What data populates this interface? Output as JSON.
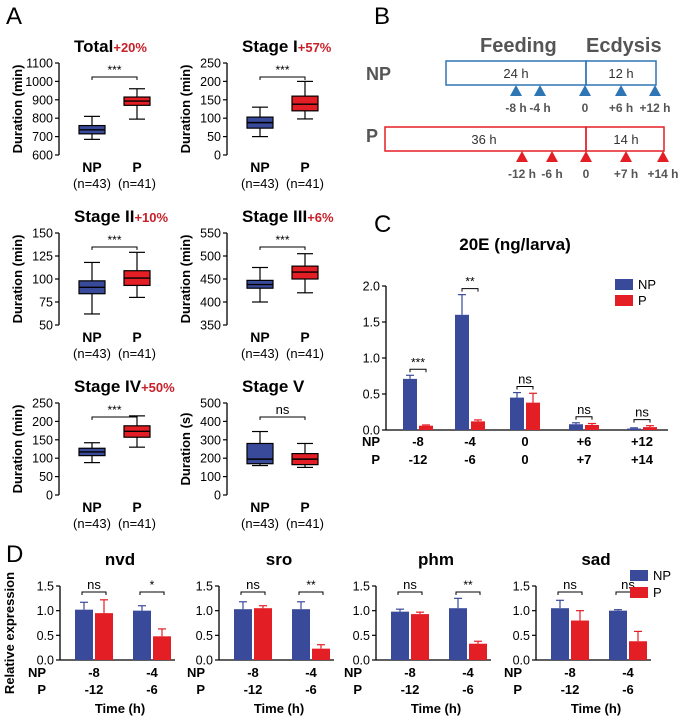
{
  "colors": {
    "np": "#3a4a9a",
    "p": "#e31e24",
    "red_text": "#c8202a",
    "np_line": "#2e75b6",
    "p_line": "#e31e24",
    "blue_tri": "#2e75b6",
    "red_tri": "#e31e24"
  },
  "panel_labels": {
    "a": "A",
    "b": "B",
    "c": "C",
    "d": "D"
  },
  "box_common": {
    "cat_np": "NP",
    "cat_p": "P",
    "n_np": "(n=43)",
    "n_p": "(n=41)"
  },
  "box_plots": [
    {
      "title": "Total",
      "pct": "+20%",
      "ylabel": "Duration (min)",
      "ymin": 600,
      "ymax": 1100,
      "ticks": [
        600,
        700,
        800,
        900,
        1000,
        1100
      ],
      "sig": "***",
      "np": {
        "min": 685,
        "q1": 715,
        "med": 737,
        "q3": 760,
        "max": 810
      },
      "p": {
        "min": 795,
        "q1": 870,
        "med": 893,
        "q3": 915,
        "max": 960
      }
    },
    {
      "title": "Stage I",
      "pct": "+57%",
      "ylabel": "Duration (min)",
      "ymin": 0,
      "ymax": 250,
      "ticks": [
        0,
        50,
        100,
        150,
        200,
        250
      ],
      "sig": "***",
      "np": {
        "min": 50,
        "q1": 73,
        "med": 88,
        "q3": 103,
        "max": 130
      },
      "p": {
        "min": 98,
        "q1": 120,
        "med": 138,
        "q3": 160,
        "max": 200
      }
    },
    {
      "title": "Stage II",
      "pct": "+10%",
      "ylabel": "Duration (min)",
      "ymin": 50,
      "ymax": 150,
      "ticks": [
        50,
        75,
        100,
        125,
        150
      ],
      "sig": "***",
      "np": {
        "min": 62,
        "q1": 84,
        "med": 91,
        "q3": 98,
        "max": 118
      },
      "p": {
        "min": 80,
        "q1": 93,
        "med": 101,
        "q3": 109,
        "max": 129
      }
    },
    {
      "title": "Stage III",
      "pct": "+6%",
      "ylabel": "Duration (min)",
      "ymin": 350,
      "ymax": 550,
      "ticks": [
        350,
        400,
        450,
        500,
        550
      ],
      "sig": "***",
      "np": {
        "min": 400,
        "q1": 430,
        "med": 438,
        "q3": 447,
        "max": 475
      },
      "p": {
        "min": 420,
        "q1": 450,
        "med": 465,
        "q3": 478,
        "max": 505
      }
    },
    {
      "title": "Stage IV",
      "pct": "+50%",
      "ylabel": "Duration (min)",
      "ymin": 0,
      "ymax": 250,
      "ticks": [
        0,
        50,
        100,
        150,
        200,
        250
      ],
      "sig": "***",
      "np": {
        "min": 88,
        "q1": 107,
        "med": 117,
        "q3": 127,
        "max": 142
      },
      "p": {
        "min": 130,
        "q1": 157,
        "med": 173,
        "q3": 188,
        "max": 215
      }
    },
    {
      "title": "Stage V",
      "pct": "",
      "ylabel": "Duration (s)",
      "ymin": 0,
      "ymax": 500,
      "ticks": [
        0,
        100,
        200,
        300,
        400,
        500
      ],
      "sig": "ns",
      "np": {
        "min": 160,
        "q1": 170,
        "med": 195,
        "q3": 280,
        "max": 345
      },
      "p": {
        "min": 150,
        "q1": 165,
        "med": 195,
        "q3": 225,
        "max": 280
      }
    }
  ],
  "timeline": {
    "feeding": "Feeding",
    "ecdysis": "Ecdysis",
    "np_label": "NP",
    "p_label": "P",
    "np_seg1": "24 h",
    "np_seg2": "12 h",
    "p_seg1": "36 h",
    "p_seg2": "14 h",
    "np_ticks": [
      "-8 h",
      "-4 h",
      "0",
      "+6 h",
      "+12 h"
    ],
    "p_ticks": [
      "-12 h",
      "-6 h",
      "0",
      "+7 h",
      "+14 h"
    ]
  },
  "chart_data": [
    {
      "type": "bar",
      "title": "20E (ng/larva)",
      "legend": [
        "NP",
        "P"
      ],
      "legend_placement": "top-right",
      "row_np": "NP",
      "row_p": "P",
      "cat_np": [
        "-8",
        "-4",
        "0",
        "+6",
        "+12"
      ],
      "cat_p": [
        "-12",
        "-6",
        "0",
        "+7",
        "+14"
      ],
      "ylim": [
        0,
        2.0
      ],
      "ticks": [
        0.0,
        0.5,
        1.0,
        1.5,
        2.0
      ],
      "series": [
        {
          "name": "NP",
          "values": [
            0.71,
            1.6,
            0.45,
            0.08,
            0.02
          ],
          "err": [
            0.05,
            0.28,
            0.07,
            0.02,
            0.01
          ]
        },
        {
          "name": "P",
          "values": [
            0.06,
            0.12,
            0.38,
            0.07,
            0.04
          ],
          "err": [
            0.01,
            0.02,
            0.13,
            0.02,
            0.02
          ]
        }
      ],
      "sig": [
        "***",
        "**",
        "ns",
        "ns",
        "ns"
      ]
    },
    {
      "type": "bar",
      "ylabel": "Relative expression",
      "xlabel": "Time (h)",
      "legend": [
        "NP",
        "P"
      ],
      "legend_placement": "right",
      "row_np": "NP",
      "row_p": "P",
      "cat_np": [
        "-8",
        "-4"
      ],
      "cat_p": [
        "-12",
        "-6"
      ],
      "ylim": [
        0,
        1.5
      ],
      "ticks": [
        0.0,
        0.5,
        1.0,
        1.5
      ],
      "panels": [
        {
          "title": "nvd",
          "np": [
            1.02,
            1.0
          ],
          "np_err": [
            0.15,
            0.1
          ],
          "p": [
            0.95,
            0.48
          ],
          "p_err": [
            0.27,
            0.15
          ],
          "sig": [
            "ns",
            "*"
          ]
        },
        {
          "title": "sro",
          "np": [
            1.03,
            1.03
          ],
          "np_err": [
            0.15,
            0.15
          ],
          "p": [
            1.05,
            0.23
          ],
          "p_err": [
            0.05,
            0.08
          ],
          "sig": [
            "ns",
            "**"
          ]
        },
        {
          "title": "phm",
          "np": [
            0.98,
            1.05
          ],
          "np_err": [
            0.05,
            0.2
          ],
          "p": [
            0.93,
            0.33
          ],
          "p_err": [
            0.04,
            0.05
          ],
          "sig": [
            "ns",
            "**"
          ]
        },
        {
          "title": "sad",
          "np": [
            1.05,
            1.0
          ],
          "np_err": [
            0.16,
            0.02
          ],
          "p": [
            0.8,
            0.38
          ],
          "p_err": [
            0.2,
            0.2
          ],
          "sig": [
            "ns",
            "ns"
          ]
        }
      ]
    }
  ]
}
